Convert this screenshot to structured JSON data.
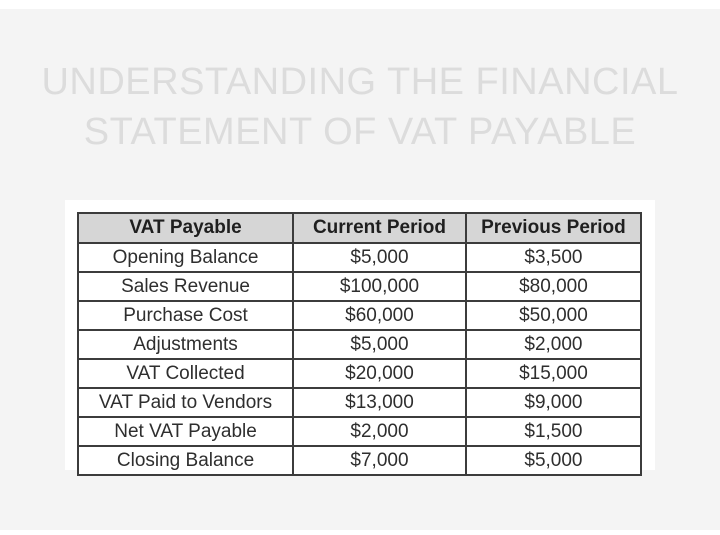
{
  "page": {
    "title_line1": "UNDERSTANDING THE FINANCIAL",
    "title_line2": "STATEMENT OF VAT PAYABLE"
  },
  "colors": {
    "page_background": "#f4f4f4",
    "outer_margin": "#ffffff",
    "panel_background": "#ffffff",
    "header_background": "#d6d6d6",
    "table_border": "#3c3c3c",
    "title_text": "#dcdcdc",
    "body_text": "#2e2e2e"
  },
  "table": {
    "columns": [
      "VAT Payable",
      "Current Period",
      "Previous Period"
    ],
    "rows": [
      {
        "label": "Opening Balance",
        "current": "$5,000",
        "previous": "$3,500"
      },
      {
        "label": "Sales Revenue",
        "current": "$100,000",
        "previous": "$80,000"
      },
      {
        "label": "Purchase Cost",
        "current": "$60,000",
        "previous": "$50,000"
      },
      {
        "label": "Adjustments",
        "current": "$5,000",
        "previous": "$2,000"
      },
      {
        "label": "VAT Collected",
        "current": "$20,000",
        "previous": "$15,000"
      },
      {
        "label": "VAT Paid to Vendors",
        "current": "$13,000",
        "previous": "$9,000"
      },
      {
        "label": "Net VAT Payable",
        "current": "$2,000",
        "previous": "$1,500"
      },
      {
        "label": "Closing Balance",
        "current": "$7,000",
        "previous": "$5,000"
      }
    ]
  }
}
